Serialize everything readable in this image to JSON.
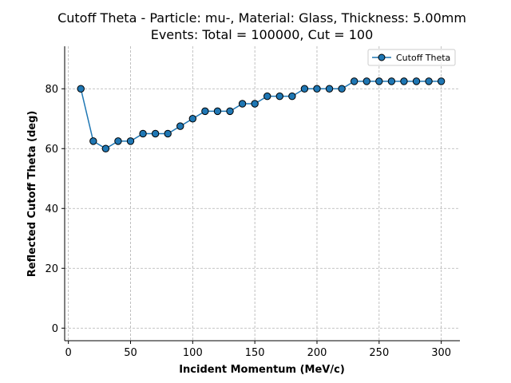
{
  "chart_data": {
    "type": "line",
    "title": "Cutoff Theta - Particle: mu-, Material: Glass, Thickness: 5.00mm",
    "subtitle": "Events: Total = 100000, Cut = 100",
    "xlabel": "Incident Momentum (MeV/c)",
    "ylabel": "Reflected Cutoff Theta (deg)",
    "xlim": [
      -3,
      315
    ],
    "ylim": [
      -4.2,
      94.2
    ],
    "xticks": [
      0,
      50,
      100,
      150,
      200,
      250,
      300
    ],
    "yticks": [
      0,
      20,
      40,
      60,
      80
    ],
    "grid": true,
    "legend_position": "top-right",
    "series": [
      {
        "name": "Cutoff Theta",
        "color": "#1f77b4",
        "marker_edge": "#000000",
        "x": [
          10,
          20,
          30,
          40,
          50,
          60,
          70,
          80,
          90,
          100,
          110,
          120,
          130,
          140,
          150,
          160,
          170,
          180,
          190,
          200,
          210,
          220,
          230,
          240,
          250,
          260,
          270,
          280,
          290,
          300
        ],
        "y": [
          80,
          62.5,
          60,
          62.5,
          62.5,
          65,
          65,
          65,
          67.5,
          70,
          72.5,
          72.5,
          72.5,
          75,
          75,
          77.5,
          77.5,
          77.5,
          80,
          80,
          80,
          80,
          82.5,
          82.5,
          82.5,
          82.5,
          82.5,
          82.5,
          82.5,
          82.5
        ]
      }
    ]
  }
}
